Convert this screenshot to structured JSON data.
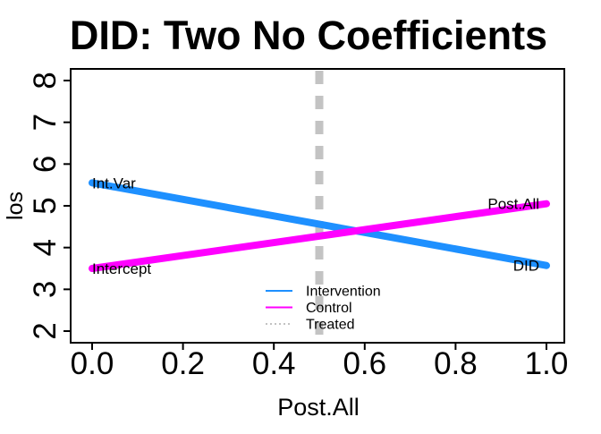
{
  "chart_data": {
    "type": "line",
    "title": "DID: Two No Coefficients",
    "xlabel": "Post.All",
    "ylabel": "los",
    "xlim": [
      0,
      1
    ],
    "ylim": [
      2,
      8
    ],
    "x_ticks": [
      0,
      0.2,
      0.4,
      0.6,
      0.8,
      1
    ],
    "x_tick_labels": [
      "0.0",
      "0.2",
      "0.4",
      "0.6",
      "0.8",
      "1.0"
    ],
    "y_ticks": [
      2,
      3,
      4,
      5,
      6,
      7,
      8
    ],
    "y_tick_labels": [
      "2",
      "3",
      "4",
      "5",
      "6",
      "7",
      "8"
    ],
    "grid": false,
    "series": [
      {
        "name": "Intervention",
        "color": "#1E90FF",
        "style": "solid",
        "x": [
          0,
          1
        ],
        "y": [
          5.55,
          3.57
        ]
      },
      {
        "name": "Control",
        "color": "#FF00FF",
        "style": "solid",
        "x": [
          0,
          1
        ],
        "y": [
          3.5,
          5.05
        ]
      }
    ],
    "vline": {
      "name": "Treated",
      "x": 0.5,
      "color": "#C3C3C3",
      "style": "dashed"
    },
    "annotations": [
      {
        "text": "Int.Var",
        "x": 0,
        "y": 5.55,
        "align": "start"
      },
      {
        "text": "Intercept",
        "x": 0,
        "y": 3.5,
        "align": "start"
      },
      {
        "text": "Post.All",
        "x": 1,
        "y": 5.05,
        "align": "end"
      },
      {
        "text": "DID",
        "x": 1,
        "y": 3.57,
        "align": "end"
      }
    ],
    "legend": {
      "position": "bottom-center-inside",
      "entries": [
        {
          "label": "Intervention",
          "color": "#1E90FF",
          "style": "solid"
        },
        {
          "label": "Control",
          "color": "#FF00FF",
          "style": "solid"
        },
        {
          "label": "Treated",
          "color": "#C3C3C3",
          "style": "dotted"
        }
      ]
    }
  }
}
